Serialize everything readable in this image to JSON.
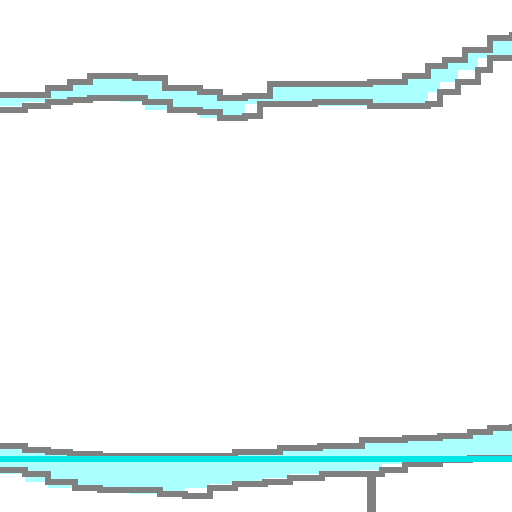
{
  "scene": {
    "background_color": "#ffffff",
    "track_fill_color": "#aaffff",
    "track_outline_color": "#808080",
    "guide_line_color": "#00e5e5",
    "post_color": "#808080"
  },
  "icons": {
    "upper_band": "track-band",
    "lower_band": "track-band",
    "guide_line": "horizontal-guide-line",
    "post": "vertical-post"
  }
}
